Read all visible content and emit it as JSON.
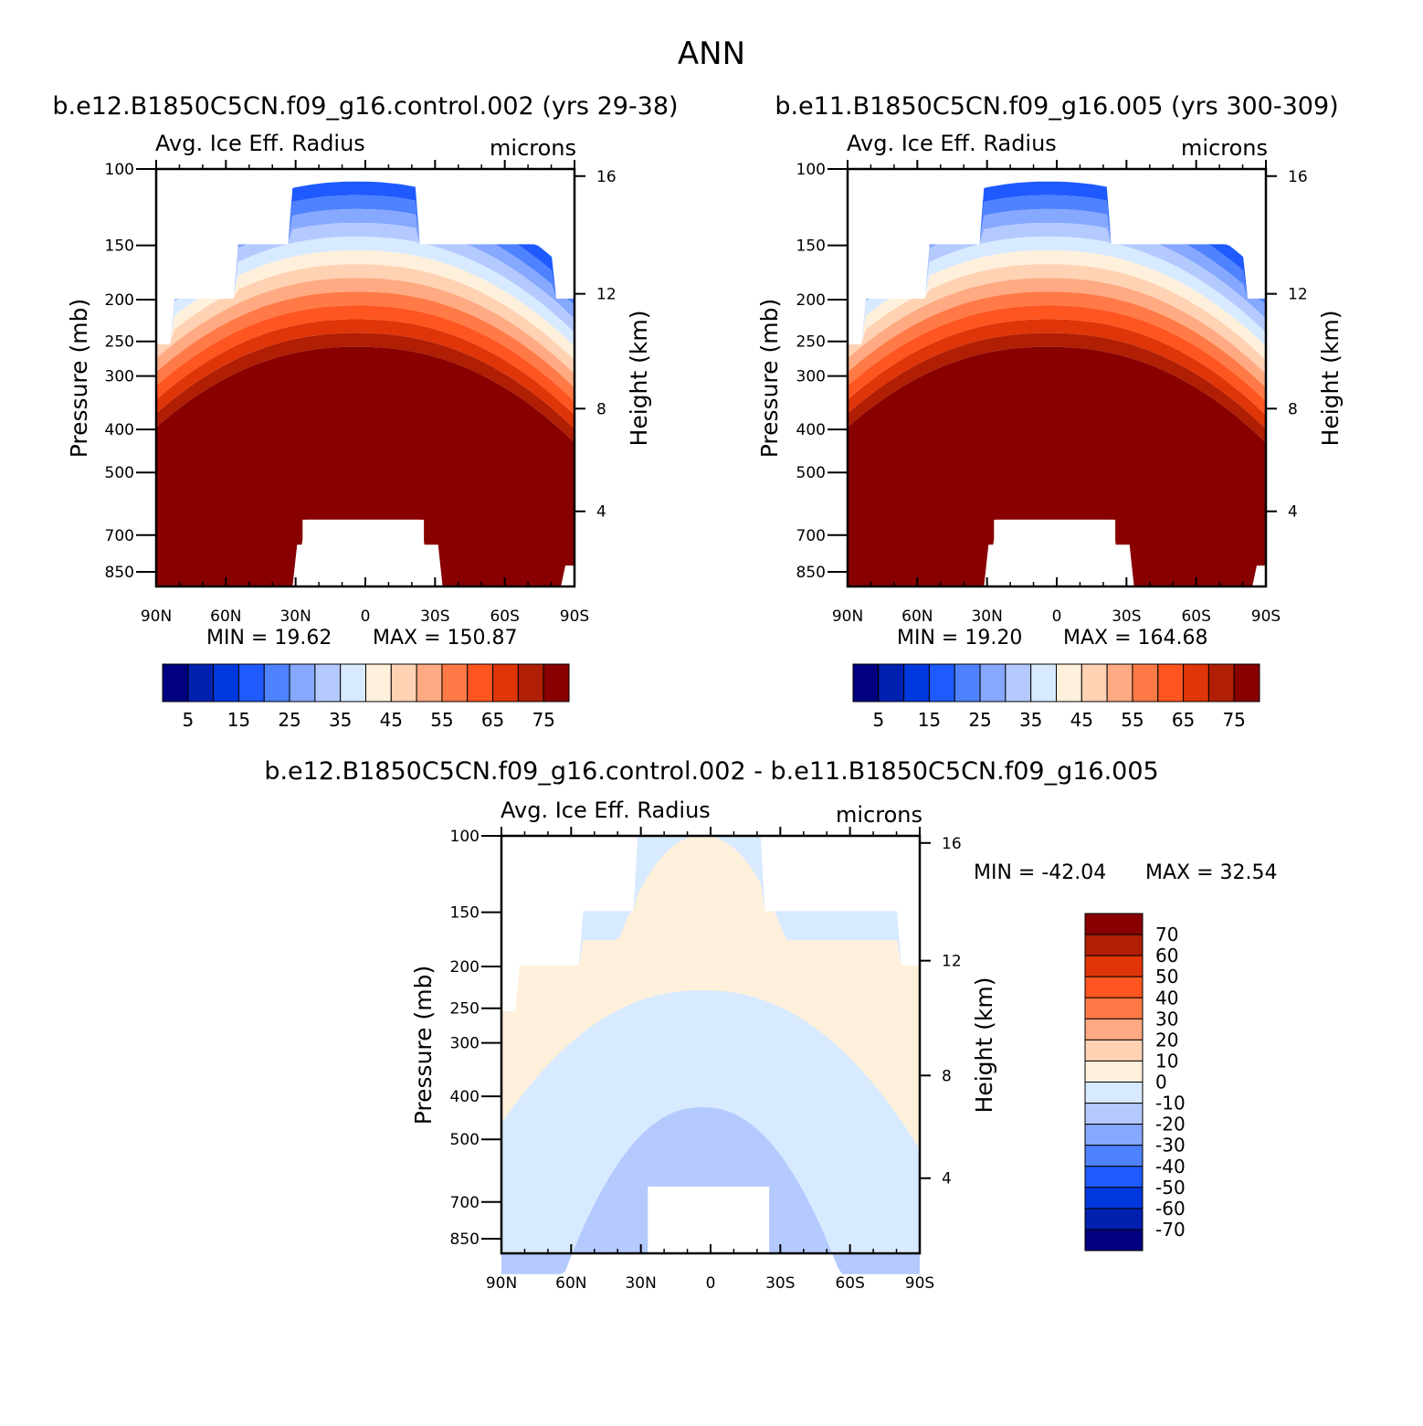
{
  "figure_title": "ANN",
  "chart_data": [
    {
      "type": "heatmap",
      "title": "b.e12.B1850C5CN.f09_g16.control.002 (yrs 29-38)",
      "left_label": "Avg. Ice Eff. Radius",
      "right_label": "microns",
      "ylabel": "Pressure (mb)",
      "ylabel_right": "Height (km)",
      "x_ticks": [
        "90N",
        "60N",
        "30N",
        "0",
        "30S",
        "60S",
        "90S"
      ],
      "y_ticks": [
        "100",
        "150",
        "200",
        "250",
        "300",
        "400",
        "500",
        "700",
        "850"
      ],
      "y_right_ticks": [
        "16",
        "12",
        "8",
        "4"
      ],
      "min_text": "MIN =   19.62",
      "max_text": "MAX = 150.87",
      "colorbar": {
        "orientation": "horizontal",
        "labels": [
          "5",
          "15",
          "25",
          "35",
          "45",
          "55",
          "65",
          "75"
        ],
        "colors": [
          "#000080",
          "#0020b0",
          "#0038e0",
          "#1e5aff",
          "#4f82ff",
          "#86a8ff",
          "#b4caff",
          "#d8eaff",
          "#fff0dc",
          "#ffd2b4",
          "#ffaa82",
          "#ff7a46",
          "#ff5520",
          "#e03508",
          "#b01e04",
          "#880000"
        ]
      },
      "levels_km": [
        16.0,
        12.0,
        8.0,
        4.0
      ]
    },
    {
      "type": "heatmap",
      "title": "b.e11.B1850C5CN.f09_g16.005 (yrs 300-309)",
      "left_label": "Avg. Ice Eff. Radius",
      "right_label": "microns",
      "ylabel": "Pressure (mb)",
      "ylabel_right": "Height (km)",
      "x_ticks": [
        "90N",
        "60N",
        "30N",
        "0",
        "30S",
        "60S",
        "90S"
      ],
      "y_ticks": [
        "100",
        "150",
        "200",
        "250",
        "300",
        "400",
        "500",
        "700",
        "850"
      ],
      "y_right_ticks": [
        "16",
        "12",
        "8",
        "4"
      ],
      "min_text": "MIN =   19.20",
      "max_text": "MAX = 164.68",
      "colorbar": {
        "orientation": "horizontal",
        "labels": [
          "5",
          "15",
          "25",
          "35",
          "45",
          "55",
          "65",
          "75"
        ],
        "colors": [
          "#000080",
          "#0020b0",
          "#0038e0",
          "#1e5aff",
          "#4f82ff",
          "#86a8ff",
          "#b4caff",
          "#d8eaff",
          "#fff0dc",
          "#ffd2b4",
          "#ffaa82",
          "#ff7a46",
          "#ff5520",
          "#e03508",
          "#b01e04",
          "#880000"
        ]
      }
    },
    {
      "type": "heatmap",
      "title": "b.e12.B1850C5CN.f09_g16.control.002 - b.e11.B1850C5CN.f09_g16.005",
      "left_label": "Avg. Ice Eff. Radius",
      "right_label": "microns",
      "ylabel": "Pressure (mb)",
      "ylabel_right": "Height (km)",
      "x_ticks": [
        "90N",
        "60N",
        "30N",
        "0",
        "30S",
        "60S",
        "90S"
      ],
      "y_ticks": [
        "100",
        "150",
        "200",
        "250",
        "300",
        "400",
        "500",
        "700",
        "850"
      ],
      "y_right_ticks": [
        "16",
        "12",
        "8",
        "4"
      ],
      "min_text": "MIN = -42.04",
      "max_text": "MAX =   32.54",
      "colorbar": {
        "orientation": "vertical",
        "labels": [
          "70",
          "60",
          "50",
          "40",
          "30",
          "20",
          "10",
          "0",
          "-10",
          "-20",
          "-30",
          "-40",
          "-50",
          "-60",
          "-70"
        ],
        "colors": [
          "#880000",
          "#b01e04",
          "#e03508",
          "#ff5520",
          "#ff7a46",
          "#ffaa82",
          "#ffd2b4",
          "#fff0dc",
          "#d8eaff",
          "#b4caff",
          "#86a8ff",
          "#4f82ff",
          "#1e5aff",
          "#0038e0",
          "#0020b0",
          "#000080"
        ]
      }
    }
  ]
}
